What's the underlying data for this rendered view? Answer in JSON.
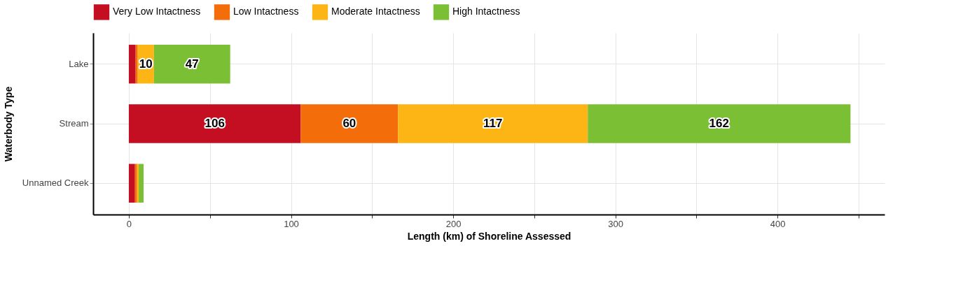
{
  "chart_data": {
    "type": "bar",
    "orientation": "horizontal",
    "stacked": true,
    "xlabel": "Length (km) of Shoreline Assessed",
    "ylabel": "Waterbody Type",
    "categories": [
      "Lake",
      "Stream",
      "Unnamed Creek"
    ],
    "series": [
      {
        "name": "Very Low Intactness",
        "color": "#c40f22",
        "values": [
          4.2,
          106,
          3.8
        ],
        "value_labels": [
          null,
          "106",
          null
        ]
      },
      {
        "name": "Low Intactness",
        "color": "#f46d0b",
        "values": [
          1.3,
          60,
          1.3
        ],
        "value_labels": [
          null,
          "60",
          null
        ]
      },
      {
        "name": "Moderate Intactness",
        "color": "#fdb515",
        "values": [
          10,
          117,
          1
        ],
        "value_labels": [
          "10",
          "117",
          null
        ]
      },
      {
        "name": "High Intactness",
        "color": "#7bbf35",
        "values": [
          47,
          162,
          3
        ],
        "value_labels": [
          "47",
          "162",
          null
        ]
      }
    ],
    "xlim": [
      -22,
      466
    ],
    "xticks": [
      0,
      {
        "value": 50,
        "label": null
      },
      100,
      {
        "value": 150,
        "label": null
      },
      200,
      {
        "value": 250,
        "label": null
      },
      300,
      {
        "value": 350,
        "label": null
      },
      400,
      {
        "value": 450,
        "label": null
      }
    ],
    "grid": true,
    "legend": "top"
  }
}
